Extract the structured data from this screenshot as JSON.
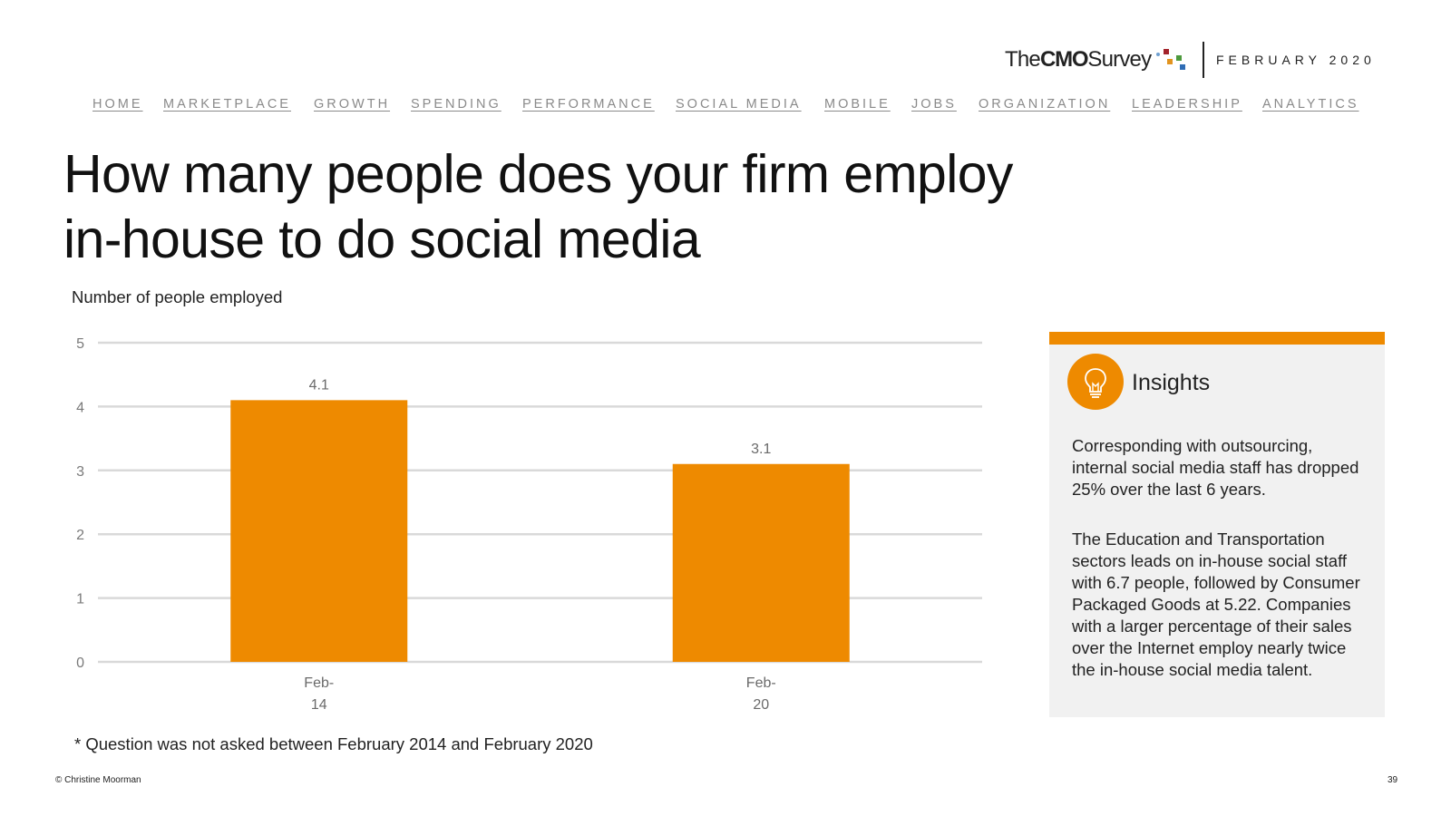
{
  "header": {
    "logo_the": "The",
    "logo_cmo": "CMO",
    "logo_survey": "Survey",
    "date": "FEBRUARY 2020"
  },
  "nav": {
    "items": [
      "HOME",
      "MARKETPLACE",
      "GROWTH",
      "SPENDING",
      "PERFORMANCE",
      "SOCIAL MEDIA",
      "MOBILE",
      "JOBS",
      "ORGANIZATION",
      "LEADERSHIP",
      "ANALYTICS"
    ]
  },
  "page": {
    "title_line1": "How many people does your firm employ",
    "title_line2": "in-house to do social media",
    "y_axis_caption": "Number of people employed",
    "footnote": "* Question was not asked between February 2014 and February 2020",
    "copyright": "© Christine Moorman",
    "page_number": "39"
  },
  "insights": {
    "title": "Insights",
    "icon": "lightbulb-icon",
    "paragraph1": "Corresponding with outsourcing, internal social media staff has dropped 25% over the last 6 years.",
    "paragraph2": "The Education and Transportation sectors leads on in-house social staff with 6.7 people, followed by Consumer Packaged Goods at 5.22. Companies with a larger percentage of their sales over the Internet employ nearly twice the in-house social media talent."
  },
  "colors": {
    "accent": "#ee8a00",
    "bar": "#ee8a00",
    "grid": "#d9d9d9",
    "nav_text": "#8a8a8a",
    "panel_bg": "#f1f1f1"
  },
  "chart_data": {
    "type": "bar",
    "title": "How many people does your firm employ in-house to do social media",
    "ylabel": "Number of people employed",
    "xlabel": "",
    "categories": [
      [
        "Feb-",
        "14"
      ],
      [
        "Feb-",
        "20"
      ]
    ],
    "values": [
      4.1,
      3.1
    ],
    "data_labels": [
      "4.1",
      "3.1"
    ],
    "ylim": [
      0,
      5
    ],
    "yticks": [
      0,
      1,
      2,
      3,
      4,
      5
    ],
    "grid": true,
    "legend": "none"
  }
}
